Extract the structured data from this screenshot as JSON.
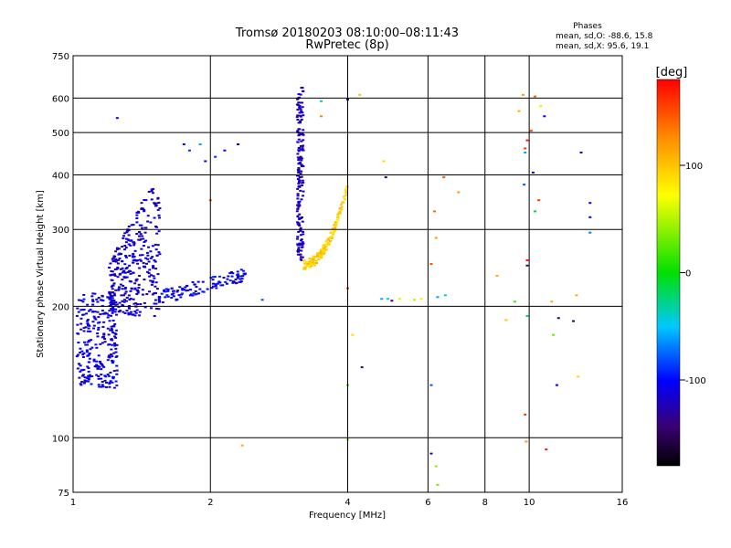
{
  "chart_data": {
    "type": "scatter",
    "title": "Tromsø 20180203 08:10:00–08:11:43",
    "subtitle": "RwPretec (8p)",
    "phases_box": {
      "heading": "Phases",
      "line1": "mean, sd,O: -88.6, 15.8",
      "line2": "mean, sd,X:  95.6, 19.1"
    },
    "xlabel": "Frequency [MHz]",
    "ylabel": "Stationary phase Virtual Height [km]",
    "xscale": "log",
    "yscale": "log",
    "xlim": [
      1,
      16
    ],
    "ylim": [
      75,
      750
    ],
    "xticks": [
      1,
      2,
      4,
      6,
      8,
      10,
      16
    ],
    "yticks": [
      75,
      100,
      200,
      300,
      400,
      500,
      600,
      750
    ],
    "xgrid": [
      2,
      4,
      6,
      8,
      10
    ],
    "ygrid": [
      100,
      200,
      300,
      400,
      500,
      600
    ],
    "colorbar": {
      "label": "[deg]",
      "range": [
        -180,
        180
      ],
      "ticks": [
        100,
        0,
        -100
      ]
    },
    "clusters": [
      {
        "name_hint": "o-mode-low",
        "phase": -110,
        "f": [
          1.02,
          1.25
        ],
        "h": [
          130,
          215
        ],
        "n": 260
      },
      {
        "name_hint": "o-mode-f1",
        "phase": -115,
        "f": [
          1.2,
          1.55
        ],
        "h": [
          190,
          400
        ],
        "n": 340
      },
      {
        "name_hint": "o-mode-trace",
        "phase": -105,
        "f": [
          1.5,
          2.4
        ],
        "h": [
          205,
          245
        ],
        "n": 120
      },
      {
        "name_hint": "o-mode-f2-trace",
        "phase": -120,
        "f": [
          3.1,
          3.2
        ],
        "h": [
          255,
          640
        ],
        "n": 170
      }
    ],
    "x_trace": {
      "phase": 95,
      "f": [
        3.2,
        4.0
      ],
      "h": [
        250,
        375
      ],
      "n": 150
    },
    "scatter_points": [
      {
        "x": 1.25,
        "y": 540,
        "phase": -110
      },
      {
        "x": 1.75,
        "y": 470,
        "phase": -100
      },
      {
        "x": 1.8,
        "y": 455,
        "phase": -90
      },
      {
        "x": 1.9,
        "y": 470,
        "phase": -60
      },
      {
        "x": 1.95,
        "y": 430,
        "phase": -120
      },
      {
        "x": 2.05,
        "y": 440,
        "phase": -90
      },
      {
        "x": 2.15,
        "y": 455,
        "phase": -100
      },
      {
        "x": 2.3,
        "y": 470,
        "phase": -110
      },
      {
        "x": 2.0,
        "y": 350,
        "phase": 140
      },
      {
        "x": 2.35,
        "y": 96,
        "phase": 110
      },
      {
        "x": 2.6,
        "y": 207,
        "phase": -80
      },
      {
        "x": 3.5,
        "y": 590,
        "phase": -40
      },
      {
        "x": 3.5,
        "y": 545,
        "phase": 130
      },
      {
        "x": 4.0,
        "y": 595,
        "phase": -100
      },
      {
        "x": 4.25,
        "y": 610,
        "phase": 100
      },
      {
        "x": 4.0,
        "y": 220,
        "phase": 160
      },
      {
        "x": 4.1,
        "y": 172,
        "phase": 90
      },
      {
        "x": 4.3,
        "y": 145,
        "phase": -130
      },
      {
        "x": 4.0,
        "y": 132,
        "phase": 20
      },
      {
        "x": 4.0,
        "y": 99,
        "phase": 40
      },
      {
        "x": 4.8,
        "y": 430,
        "phase": 90
      },
      {
        "x": 4.85,
        "y": 395,
        "phase": -140
      },
      {
        "x": 4.75,
        "y": 208,
        "phase": -60
      },
      {
        "x": 4.9,
        "y": 208,
        "phase": -50
      },
      {
        "x": 5.0,
        "y": 206,
        "phase": -150
      },
      {
        "x": 5.2,
        "y": 208,
        "phase": 60
      },
      {
        "x": 5.6,
        "y": 207,
        "phase": 50
      },
      {
        "x": 5.8,
        "y": 208,
        "phase": 80
      },
      {
        "x": 6.1,
        "y": 250,
        "phase": 150
      },
      {
        "x": 6.2,
        "y": 330,
        "phase": 140
      },
      {
        "x": 6.25,
        "y": 287,
        "phase": 120
      },
      {
        "x": 6.3,
        "y": 210,
        "phase": -60
      },
      {
        "x": 6.5,
        "y": 395,
        "phase": 150
      },
      {
        "x": 6.55,
        "y": 212,
        "phase": -40
      },
      {
        "x": 7.0,
        "y": 365,
        "phase": 120
      },
      {
        "x": 6.1,
        "y": 132,
        "phase": -80
      },
      {
        "x": 6.1,
        "y": 92,
        "phase": -130
      },
      {
        "x": 6.25,
        "y": 86,
        "phase": 40
      },
      {
        "x": 6.3,
        "y": 78,
        "phase": 30
      },
      {
        "x": 8.5,
        "y": 235,
        "phase": 110
      },
      {
        "x": 8.9,
        "y": 186,
        "phase": 100
      },
      {
        "x": 9.3,
        "y": 205,
        "phase": 20
      },
      {
        "x": 9.5,
        "y": 560,
        "phase": 110
      },
      {
        "x": 9.7,
        "y": 610,
        "phase": 120
      },
      {
        "x": 9.8,
        "y": 460,
        "phase": 160
      },
      {
        "x": 9.9,
        "y": 480,
        "phase": 170
      },
      {
        "x": 9.8,
        "y": 450,
        "phase": -60
      },
      {
        "x": 9.75,
        "y": 380,
        "phase": -80
      },
      {
        "x": 9.9,
        "y": 255,
        "phase": 170
      },
      {
        "x": 9.9,
        "y": 248,
        "phase": -140
      },
      {
        "x": 9.9,
        "y": 190,
        "phase": -20
      },
      {
        "x": 9.8,
        "y": 113,
        "phase": 160
      },
      {
        "x": 9.85,
        "y": 98,
        "phase": 120
      },
      {
        "x": 10.1,
        "y": 505,
        "phase": 150
      },
      {
        "x": 10.2,
        "y": 405,
        "phase": -120
      },
      {
        "x": 10.3,
        "y": 330,
        "phase": -10
      },
      {
        "x": 10.5,
        "y": 350,
        "phase": 160
      },
      {
        "x": 10.3,
        "y": 605,
        "phase": 140
      },
      {
        "x": 10.6,
        "y": 575,
        "phase": 60
      },
      {
        "x": 10.8,
        "y": 545,
        "phase": -100
      },
      {
        "x": 10.9,
        "y": 94,
        "phase": 170
      },
      {
        "x": 11.2,
        "y": 205,
        "phase": 110
      },
      {
        "x": 11.3,
        "y": 172,
        "phase": 30
      },
      {
        "x": 11.5,
        "y": 132,
        "phase": -110
      },
      {
        "x": 11.6,
        "y": 188,
        "phase": -130
      },
      {
        "x": 12.5,
        "y": 185,
        "phase": -150
      },
      {
        "x": 12.7,
        "y": 212,
        "phase": 110
      },
      {
        "x": 12.8,
        "y": 138,
        "phase": 90
      },
      {
        "x": 13.0,
        "y": 450,
        "phase": -120
      },
      {
        "x": 13.6,
        "y": 345,
        "phase": -110
      },
      {
        "x": 13.6,
        "y": 320,
        "phase": -100
      },
      {
        "x": 13.6,
        "y": 295,
        "phase": -70
      }
    ]
  }
}
